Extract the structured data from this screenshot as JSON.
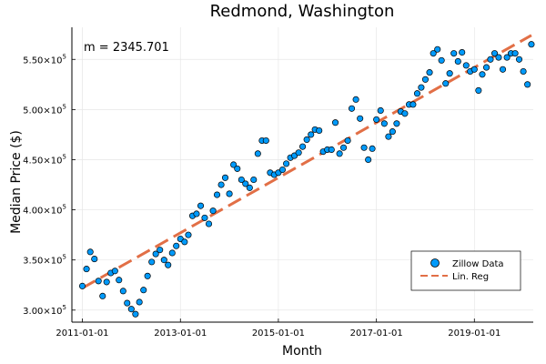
{
  "chart_data": {
    "type": "scatter",
    "title": "Redmond, Washington",
    "xlabel": "Month",
    "ylabel": "Median Price ($)",
    "annotation": "m = 2345.701",
    "x_start": "2011-01-01",
    "x_end": "2019-12-01",
    "xlim": [
      "2010-10-15",
      "2020-03-15"
    ],
    "ylim": [
      288000,
      582000
    ],
    "x_ticks": [
      "2011-01-01",
      "2013-01-01",
      "2015-01-01",
      "2017-01-01",
      "2019-01-01"
    ],
    "y_ticks": [
      300000,
      350000,
      400000,
      450000,
      500000,
      550000
    ],
    "y_tick_labels": [
      {
        "base": "3.00×10",
        "exp": "5"
      },
      {
        "base": "3.50×10",
        "exp": "5"
      },
      {
        "base": "4.00×10",
        "exp": "5"
      },
      {
        "base": "4.50×10",
        "exp": "5"
      },
      {
        "base": "5.00×10",
        "exp": "5"
      },
      {
        "base": "5.50×10",
        "exp": "5"
      }
    ],
    "legend_position": "bottom-right",
    "grid": true,
    "series": [
      {
        "name": "Zillow Data",
        "kind": "points",
        "color": "#009AFA",
        "values": [
          324000,
          341000,
          358000,
          351000,
          329000,
          314000,
          328000,
          337000,
          339000,
          330000,
          319000,
          307000,
          301000,
          296000,
          308000,
          320000,
          334000,
          348000,
          356000,
          360000,
          350000,
          345000,
          357000,
          364000,
          371000,
          368000,
          375000,
          394000,
          396000,
          404000,
          392000,
          386000,
          399000,
          415000,
          425000,
          432000,
          416000,
          445000,
          441000,
          430000,
          426000,
          422000,
          430000,
          456000,
          469000,
          469000,
          437000,
          435000,
          437000,
          440000,
          446000,
          452000,
          454000,
          457000,
          463000,
          470000,
          475000,
          480000,
          479000,
          458000,
          460000,
          460000,
          487000,
          456000,
          462000,
          469000,
          501000,
          510000,
          491000,
          462000,
          450000,
          461000,
          490000,
          499000,
          486000,
          473000,
          478000,
          486000,
          498000,
          496000,
          505000,
          505000,
          516000,
          522000,
          530000,
          537000,
          556000,
          560000,
          549000,
          526000,
          536000,
          556000,
          548000,
          557000,
          544000,
          538000,
          540000,
          519000,
          535000,
          542000,
          550000,
          556000,
          552000,
          540000,
          552000,
          556000,
          556000,
          550000,
          538000,
          525000,
          565000
        ]
      },
      {
        "name": "Lin. Reg",
        "kind": "line",
        "color": "#E26F46",
        "start": 322000,
        "end": 574000
      }
    ]
  }
}
